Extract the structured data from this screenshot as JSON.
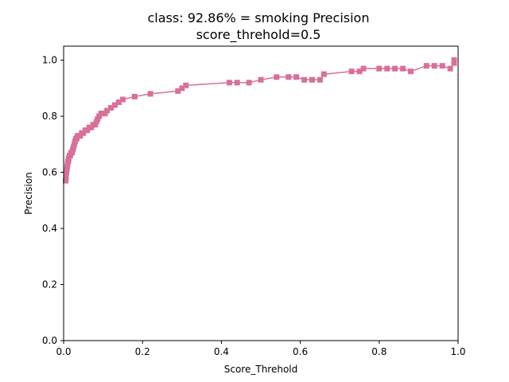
{
  "chart_data": {
    "type": "line",
    "title_line1": "class: 92.86% = smoking Precision",
    "title_line2": "score_threhold=0.5",
    "xlabel": "Score_Threhold",
    "ylabel": "Precision",
    "xlim": [
      0,
      1
    ],
    "ylim": [
      0,
      1.05
    ],
    "xticks": [
      0.0,
      0.2,
      0.4,
      0.6,
      0.8,
      1.0
    ],
    "xtick_labels": [
      "0.0",
      "0.2",
      "0.4",
      "0.6",
      "0.8",
      "1.0"
    ],
    "yticks": [
      0.0,
      0.2,
      0.4,
      0.6,
      0.8,
      1.0
    ],
    "ytick_labels": [
      "0.0",
      "0.2",
      "0.4",
      "0.6",
      "0.8",
      "1.0"
    ],
    "grid": false,
    "series": [
      {
        "color": "#d8709a",
        "marker": "square",
        "x": [
          0.005,
          0.006,
          0.007,
          0.008,
          0.009,
          0.01,
          0.011,
          0.012,
          0.013,
          0.015,
          0.017,
          0.019,
          0.021,
          0.023,
          0.025,
          0.027,
          0.029,
          0.031,
          0.033,
          0.035,
          0.038,
          0.042,
          0.046,
          0.05,
          0.055,
          0.06,
          0.065,
          0.07,
          0.075,
          0.08,
          0.083,
          0.086,
          0.09,
          0.095,
          0.1,
          0.105,
          0.11,
          0.12,
          0.13,
          0.14,
          0.15,
          0.18,
          0.22,
          0.29,
          0.3,
          0.31,
          0.42,
          0.44,
          0.47,
          0.5,
          0.54,
          0.57,
          0.59,
          0.61,
          0.63,
          0.65,
          0.66,
          0.73,
          0.75,
          0.76,
          0.8,
          0.82,
          0.84,
          0.86,
          0.88,
          0.92,
          0.94,
          0.96,
          0.98,
          0.99,
          0.99
        ],
        "y": [
          0.57,
          0.58,
          0.6,
          0.61,
          0.62,
          0.63,
          0.64,
          0.64,
          0.65,
          0.66,
          0.66,
          0.67,
          0.67,
          0.68,
          0.69,
          0.7,
          0.71,
          0.72,
          0.72,
          0.73,
          0.73,
          0.73,
          0.74,
          0.74,
          0.75,
          0.75,
          0.76,
          0.76,
          0.77,
          0.77,
          0.78,
          0.79,
          0.8,
          0.81,
          0.81,
          0.81,
          0.82,
          0.83,
          0.84,
          0.85,
          0.86,
          0.87,
          0.88,
          0.89,
          0.9,
          0.91,
          0.92,
          0.92,
          0.92,
          0.93,
          0.94,
          0.94,
          0.94,
          0.93,
          0.93,
          0.93,
          0.95,
          0.96,
          0.96,
          0.97,
          0.97,
          0.97,
          0.97,
          0.97,
          0.96,
          0.98,
          0.98,
          0.98,
          0.97,
          0.99,
          1.0
        ]
      }
    ]
  }
}
